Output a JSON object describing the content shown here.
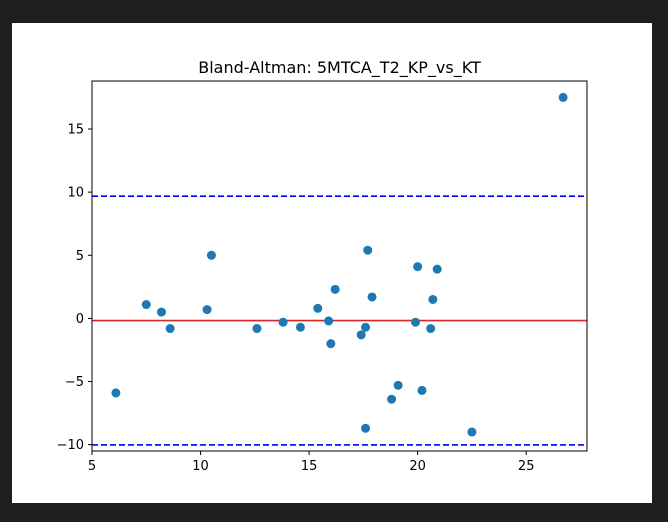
{
  "chart_data": {
    "type": "scatter",
    "title": "Bland-Altman: 5MTCA_T2_KP_vs_KT",
    "xlabel": "",
    "ylabel": "",
    "xlim": [
      5,
      27.8
    ],
    "ylim": [
      -10.5,
      18.8
    ],
    "xticks": [
      5,
      10,
      15,
      20,
      25
    ],
    "yticks": [
      -10,
      -5,
      0,
      5,
      10,
      15
    ],
    "grid": false,
    "point_color": "#1f77b4",
    "mean_line": {
      "y": -0.17,
      "color": "#d62728",
      "style": "solid"
    },
    "limit_lines": [
      {
        "y": 9.68,
        "color": "#0000ff",
        "style": "dashed"
      },
      {
        "y": -10.02,
        "color": "#0000ff",
        "style": "dashed"
      }
    ],
    "points": [
      {
        "x": 6.1,
        "y": -5.9
      },
      {
        "x": 7.5,
        "y": 1.1
      },
      {
        "x": 8.2,
        "y": 0.5
      },
      {
        "x": 8.6,
        "y": -0.8
      },
      {
        "x": 10.3,
        "y": 0.7
      },
      {
        "x": 10.5,
        "y": 5.0
      },
      {
        "x": 12.6,
        "y": -0.8
      },
      {
        "x": 13.8,
        "y": -0.3
      },
      {
        "x": 14.6,
        "y": -0.7
      },
      {
        "x": 15.4,
        "y": 0.8
      },
      {
        "x": 15.9,
        "y": -0.2
      },
      {
        "x": 16.0,
        "y": -2.0
      },
      {
        "x": 16.2,
        "y": 2.3
      },
      {
        "x": 17.4,
        "y": -1.3
      },
      {
        "x": 17.6,
        "y": -0.7
      },
      {
        "x": 17.7,
        "y": 5.4
      },
      {
        "x": 17.6,
        "y": -8.7
      },
      {
        "x": 17.9,
        "y": 1.7
      },
      {
        "x": 18.8,
        "y": -6.4
      },
      {
        "x": 19.1,
        "y": -5.3
      },
      {
        "x": 19.9,
        "y": -0.3
      },
      {
        "x": 20.0,
        "y": 4.1
      },
      {
        "x": 20.2,
        "y": -5.7
      },
      {
        "x": 20.6,
        "y": -0.8
      },
      {
        "x": 20.7,
        "y": 1.5
      },
      {
        "x": 20.9,
        "y": 3.9
      },
      {
        "x": 22.5,
        "y": -9.0
      },
      {
        "x": 26.7,
        "y": 17.5
      }
    ]
  }
}
